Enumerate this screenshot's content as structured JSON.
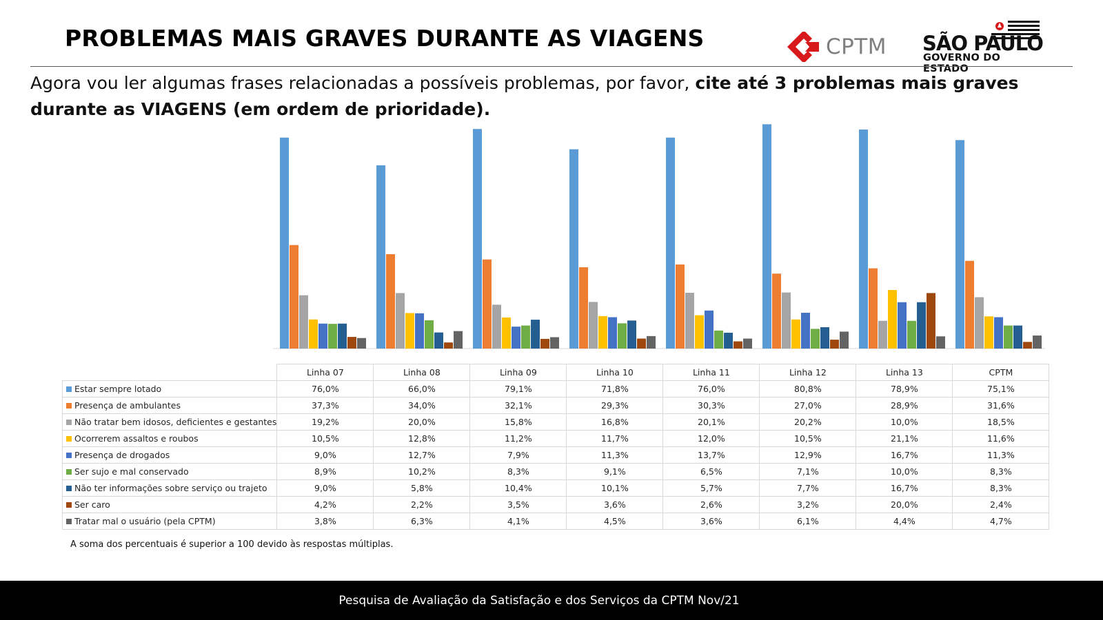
{
  "header": {
    "title": "PROBLEMAS MAIS GRAVES DURANTE AS VIAGENS",
    "logo_cptm_text": "CPTM",
    "logo_sp_name": "SÃO PAULO",
    "logo_sp_subtitle": "GOVERNO DO ESTADO"
  },
  "question": {
    "text_plain": "Agora vou ler algumas frases relacionadas a possíveis problemas, por favor, ",
    "text_bold": "cite até 3 problemas mais graves durante as VIAGENS (em ordem de prioridade)."
  },
  "chart_data": {
    "type": "bar",
    "categories": [
      "Linha 07",
      "Linha 08",
      "Linha 09",
      "Linha 10",
      "Linha 11",
      "Linha 12",
      "Linha 13",
      "CPTM"
    ],
    "series": [
      {
        "name": "Estar sempre lotado",
        "color": "#5b9bd5",
        "values": [
          76.0,
          66.0,
          79.1,
          71.8,
          76.0,
          80.8,
          78.9,
          75.1
        ],
        "labels": [
          "76,0%",
          "66,0%",
          "79,1%",
          "71,8%",
          "76,0%",
          "80,8%",
          "78,9%",
          "75,1%"
        ]
      },
      {
        "name": "Presença de ambulantes",
        "color": "#ed7d31",
        "values": [
          37.3,
          34.0,
          32.1,
          29.3,
          30.3,
          27.0,
          28.9,
          31.6
        ],
        "labels": [
          "37,3%",
          "34,0%",
          "32,1%",
          "29,3%",
          "30,3%",
          "27,0%",
          "28,9%",
          "31,6%"
        ]
      },
      {
        "name": "Não tratar bem idosos, deficientes e gestantes",
        "color": "#a5a5a5",
        "values": [
          19.2,
          20.0,
          15.8,
          16.8,
          20.1,
          20.2,
          10.0,
          18.5
        ],
        "labels": [
          "19,2%",
          "20,0%",
          "15,8%",
          "16,8%",
          "20,1%",
          "20,2%",
          "10,0%",
          "18,5%"
        ]
      },
      {
        "name": "Ocorrerem assaltos e roubos",
        "color": "#ffc000",
        "values": [
          10.5,
          12.8,
          11.2,
          11.7,
          12.0,
          10.5,
          21.1,
          11.6
        ],
        "labels": [
          "10,5%",
          "12,8%",
          "11,2%",
          "11,7%",
          "12,0%",
          "10,5%",
          "21,1%",
          "11,6%"
        ]
      },
      {
        "name": "Presença de drogados",
        "color": "#4472c4",
        "values": [
          9.0,
          12.7,
          7.9,
          11.3,
          13.7,
          12.9,
          16.7,
          11.3
        ],
        "labels": [
          "9,0%",
          "12,7%",
          "7,9%",
          "11,3%",
          "13,7%",
          "12,9%",
          "16,7%",
          "11,3%"
        ]
      },
      {
        "name": "Ser sujo e mal conservado",
        "color": "#70ad47",
        "values": [
          8.9,
          10.2,
          8.3,
          9.1,
          6.5,
          7.1,
          10.0,
          8.3
        ],
        "labels": [
          "8,9%",
          "10,2%",
          "8,3%",
          "9,1%",
          "6,5%",
          "7,1%",
          "10,0%",
          "8,3%"
        ]
      },
      {
        "name": "Não ter informações sobre serviço ou trajeto",
        "color": "#255e91",
        "values": [
          9.0,
          5.8,
          10.4,
          10.1,
          5.7,
          7.7,
          16.7,
          8.3
        ],
        "labels": [
          "9,0%",
          "5,8%",
          "10,4%",
          "10,1%",
          "5,7%",
          "7,7%",
          "16,7%",
          "8,3%"
        ]
      },
      {
        "name": "Ser caro",
        "color": "#9e480e",
        "values": [
          4.2,
          2.2,
          3.5,
          3.6,
          2.6,
          3.2,
          20.0,
          2.4
        ],
        "labels": [
          "4,2%",
          "2,2%",
          "3,5%",
          "3,6%",
          "2,6%",
          "3,2%",
          "20,0%",
          "2,4%"
        ]
      },
      {
        "name": "Tratar mal o usuário (pela CPTM)",
        "color": "#636363",
        "values": [
          3.8,
          6.3,
          4.1,
          4.5,
          3.6,
          6.1,
          4.4,
          4.7
        ],
        "labels": [
          "3,8%",
          "6,3%",
          "4,1%",
          "4,5%",
          "3,6%",
          "6,1%",
          "4,4%",
          "4,7%"
        ]
      }
    ],
    "title": "",
    "xlabel": "",
    "ylabel": "",
    "ylim": [
      0,
      85
    ],
    "grid": false,
    "legend": "data table"
  },
  "footnote": "A soma dos percentuais é superior  a 100 devido às respostas múltiplas.",
  "footer": "Pesquisa de Avaliação da Satisfação e dos Serviços da CPTM Nov/21"
}
